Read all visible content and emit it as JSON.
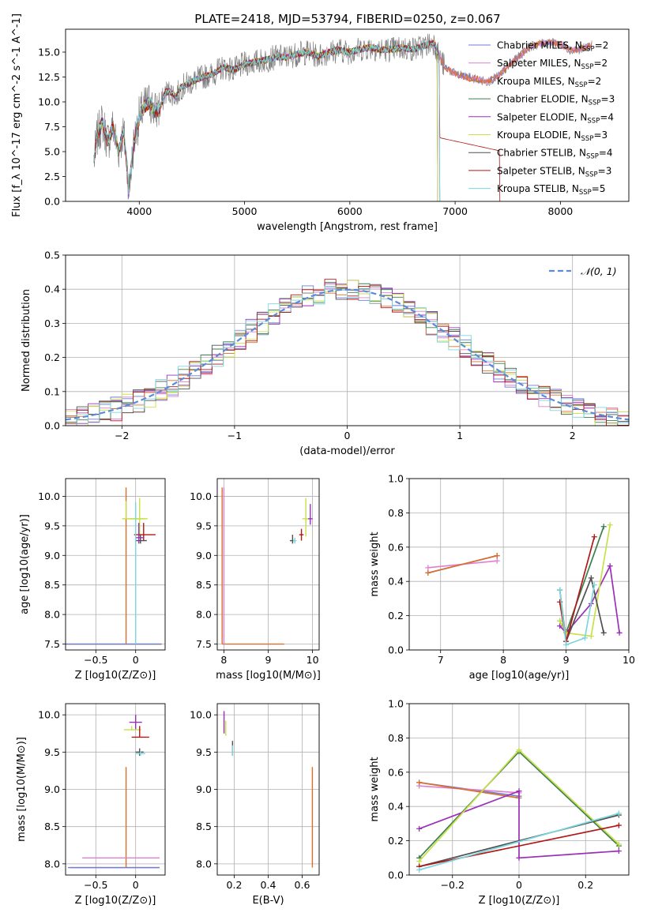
{
  "figure_title": "PLATE=2418, MJD=53794, FIBERID=0250, z=0.067",
  "colors": {
    "chabrier_miles": "#6a7fd8",
    "salpeter_miles": "#e17fcf",
    "kroupa_miles": "#d9702a",
    "chabrier_elodie": "#3c7f4f",
    "salpeter_elodie": "#9b30b8",
    "kroupa_elodie": "#c8e04a",
    "chabrier_stelib": "#505050",
    "salpeter_stelib": "#b01818",
    "kroupa_stelib": "#7cd6dc",
    "gauss": "#5b8bd9",
    "data_spectrum": "#808080"
  },
  "legend": [
    {
      "label": "Chabrier MILES, N",
      "sub": "SSP",
      "suffix": "=2",
      "color_key": "chabrier_miles"
    },
    {
      "label": "Salpeter MILES, N",
      "sub": "SSP",
      "suffix": "=2",
      "color_key": "salpeter_miles"
    },
    {
      "label": "Kroupa MILES, N",
      "sub": "SSP",
      "suffix": "=2",
      "color_key": "kroupa_miles"
    },
    {
      "label": "Chabrier ELODIE, N",
      "sub": "SSP",
      "suffix": "=3",
      "color_key": "chabrier_elodie"
    },
    {
      "label": "Salpeter ELODIE, N",
      "sub": "SSP",
      "suffix": "=4",
      "color_key": "salpeter_elodie"
    },
    {
      "label": "Kroupa ELODIE, N",
      "sub": "SSP",
      "suffix": "=3",
      "color_key": "kroupa_elodie"
    },
    {
      "label": "Chabrier STELIB, N",
      "sub": "SSP",
      "suffix": "=4",
      "color_key": "chabrier_stelib"
    },
    {
      "label": "Salpeter STELIB, N",
      "sub": "SSP",
      "suffix": "=3",
      "color_key": "salpeter_stelib"
    },
    {
      "label": "Kroupa STELIB, N",
      "sub": "SSP",
      "suffix": "=5",
      "color_key": "kroupa_stelib"
    }
  ],
  "chart_data": [
    {
      "id": "spectrum",
      "type": "line",
      "xlabel": "wavelength [Angstrom, rest frame]",
      "ylabel": "Flux [f_λ 10^-17 erg cm^-2 s^-1 A^-1]",
      "xlim": [
        3300,
        8650
      ],
      "ylim": [
        0,
        17.3
      ],
      "xticks": [
        4000,
        5000,
        6000,
        7000,
        8000
      ],
      "yticks": [
        0.0,
        2.5,
        5.0,
        7.5,
        10.0,
        12.5,
        15.0
      ],
      "series": [
        {
          "name": "data",
          "x": [
            3570,
            3600,
            3650,
            3700,
            3750,
            3800,
            3850,
            3880,
            3900,
            3950,
            4000,
            4050,
            4100,
            4150,
            4200,
            4250,
            4300,
            4350,
            4400,
            4500,
            4600,
            4700,
            4800,
            4900,
            5000,
            5100,
            5200,
            5300,
            5400,
            5500,
            5600,
            5700,
            5800,
            5900,
            6000,
            6100,
            6200,
            6300,
            6400,
            6500,
            6600,
            6700,
            6800,
            6850,
            6900,
            7000,
            7100,
            7200,
            7300,
            7400,
            7500,
            7600,
            7700,
            7800,
            7900,
            8000,
            8100,
            8200,
            8300
          ],
          "y": [
            4.0,
            6.5,
            8.0,
            6.0,
            7.5,
            5.0,
            7.0,
            4.0,
            1.0,
            6.0,
            8.5,
            9.5,
            10.0,
            9.0,
            9.5,
            11.0,
            11.0,
            10.5,
            11.5,
            12.0,
            12.5,
            12.8,
            13.5,
            13.2,
            13.8,
            14.0,
            14.2,
            14.5,
            14.5,
            14.8,
            15.0,
            14.6,
            15.0,
            15.2,
            15.0,
            15.3,
            15.5,
            15.2,
            15.3,
            15.4,
            15.3,
            15.6,
            16.0,
            14.5,
            13.5,
            12.8,
            12.5,
            12.3,
            12.0,
            12.5,
            13.5,
            14.5,
            15.5,
            15.8,
            16.0,
            15.8,
            15.2,
            15.3,
            15.7
          ]
        }
      ]
    },
    {
      "id": "residuals",
      "type": "line",
      "xlabel": "(data-model)/error",
      "ylabel": "Normed distribution",
      "xlim": [
        -2.5,
        2.5
      ],
      "ylim": [
        0,
        0.5
      ],
      "xticks": [
        -2,
        -1,
        0,
        1,
        2
      ],
      "yticks": [
        0.0,
        0.1,
        0.2,
        0.3,
        0.4,
        0.5
      ],
      "legend_label": "N(0,1)",
      "legend_position": "top-right",
      "hist_bins": 50,
      "series": [
        {
          "name": "N(0,1)",
          "x": [
            -2.5,
            -2.25,
            -2.0,
            -1.75,
            -1.5,
            -1.25,
            -1.0,
            -0.75,
            -0.5,
            -0.25,
            0.0,
            0.25,
            0.5,
            0.75,
            1.0,
            1.25,
            1.5,
            1.75,
            2.0,
            2.25,
            2.5
          ],
          "y": [
            0.018,
            0.032,
            0.054,
            0.086,
            0.13,
            0.183,
            0.242,
            0.301,
            0.352,
            0.387,
            0.399,
            0.387,
            0.352,
            0.301,
            0.242,
            0.183,
            0.13,
            0.086,
            0.054,
            0.032,
            0.018
          ]
        }
      ]
    },
    {
      "id": "age_vs_Z",
      "type": "scatter",
      "xlabel": "Z [log10(Z/Z⊙)]",
      "ylabel": "age  [log10(age/yr)]",
      "xlim": [
        -0.88,
        0.37
      ],
      "ylim": [
        7.4,
        10.3
      ],
      "xticks": [
        -0.5,
        0.0
      ],
      "yticks": [
        7.5,
        8.0,
        8.5,
        9.0,
        9.5,
        10.0
      ],
      "errorbars": [
        {
          "x": -0.12,
          "y": 7.5,
          "xerr": [
            0.75,
            0.45
          ],
          "yerr": [
            0.0,
            2.65
          ],
          "color_key": "kroupa_miles"
        },
        {
          "x": 0.02,
          "y": 7.5,
          "xerr": [
            0.9,
            0.3
          ],
          "yerr": [
            0,
            0
          ],
          "color_key": "chabrier_miles"
        },
        {
          "x": -0.12,
          "y": 9.62,
          "xerr": [
            0.05,
            0.22
          ],
          "yerr": [
            0.0,
            0.3
          ],
          "color_key": "kroupa_elodie"
        },
        {
          "x": 0.05,
          "y": 9.62,
          "xerr": [
            0.12,
            0.1
          ],
          "yerr": [
            0.3,
            0.35
          ],
          "color_key": "kroupa_elodie"
        },
        {
          "x": 0.1,
          "y": 9.35,
          "xerr": [
            0.12,
            0.15
          ],
          "yerr": [
            0.1,
            0.2
          ],
          "color_key": "salpeter_stelib"
        },
        {
          "x": 0.06,
          "y": 9.25,
          "xerr": [
            0.06,
            0.08
          ],
          "yerr": [
            0.05,
            0.1
          ],
          "color_key": "chabrier_stelib"
        },
        {
          "x": 0.04,
          "y": 9.3,
          "xerr": [
            0.04,
            0.06
          ],
          "yerr": [
            0.1,
            0.25
          ],
          "color_key": "salpeter_elodie"
        },
        {
          "x": 0.0,
          "y": 8.6,
          "xerr": [
            0.0,
            0.0
          ],
          "yerr": [
            1.1,
            1.3
          ],
          "color_key": "kroupa_stelib"
        }
      ]
    },
    {
      "id": "age_vs_mass",
      "type": "scatter",
      "xlabel": "mass [log10(M/M⊙)]",
      "ylabel": "",
      "xlim": [
        7.85,
        10.15
      ],
      "ylim": [
        7.4,
        10.3
      ],
      "xticks": [
        8,
        9,
        10
      ],
      "yticks": [
        7.5,
        8.0,
        8.5,
        9.0,
        9.5,
        10.0
      ],
      "errorbars": [
        {
          "x": 7.96,
          "y": 7.5,
          "xerr": [
            0.0,
            1.4
          ],
          "yerr": [
            0.0,
            2.65
          ],
          "color_key": "kroupa_miles"
        },
        {
          "x": 8.0,
          "y": 8.8,
          "xerr": [
            0,
            0
          ],
          "yerr": [
            1.3,
            1.35
          ],
          "color_key": "salpeter_miles"
        },
        {
          "x": 9.85,
          "y": 9.62,
          "xerr": [
            0.08,
            0.08
          ],
          "yerr": [
            0.3,
            0.35
          ],
          "color_key": "kroupa_elodie"
        },
        {
          "x": 9.95,
          "y": 9.62,
          "xerr": [
            0.05,
            0.05
          ],
          "yerr": [
            0.1,
            0.25
          ],
          "color_key": "salpeter_elodie"
        },
        {
          "x": 9.55,
          "y": 9.25,
          "xerr": [
            0.06,
            0.06
          ],
          "yerr": [
            0.05,
            0.1
          ],
          "color_key": "chabrier_stelib"
        },
        {
          "x": 9.75,
          "y": 9.35,
          "xerr": [
            0.05,
            0.05
          ],
          "yerr": [
            0.1,
            0.1
          ],
          "color_key": "salpeter_stelib"
        },
        {
          "x": 9.6,
          "y": 9.25,
          "xerr": [
            0.04,
            0.04
          ],
          "yerr": [
            0.05,
            0.05
          ],
          "color_key": "kroupa_stelib"
        }
      ]
    },
    {
      "id": "massweight_vs_age",
      "type": "line",
      "xlabel": "age  [log10(age/yr)]",
      "ylabel": "mass weight",
      "xlim": [
        6.5,
        10.0
      ],
      "ylim": [
        0,
        1.0
      ],
      "xticks": [
        7,
        8,
        9,
        10
      ],
      "yticks": [
        0.0,
        0.2,
        0.4,
        0.6,
        0.8,
        1.0
      ],
      "series": [
        {
          "name": "Chabrier MILES",
          "color_key": "chabrier_miles",
          "x": [
            6.8,
            7.9
          ],
          "y": [
            0.45,
            0.55
          ]
        },
        {
          "name": "Salpeter MILES",
          "color_key": "salpeter_miles",
          "x": [
            6.8,
            7.9
          ],
          "y": [
            0.48,
            0.52
          ]
        },
        {
          "name": "Kroupa MILES",
          "color_key": "kroupa_miles",
          "x": [
            6.8,
            7.9
          ],
          "y": [
            0.45,
            0.55
          ]
        },
        {
          "name": "Chabrier ELODIE",
          "color_key": "chabrier_elodie",
          "x": [
            8.9,
            9.0,
            9.6
          ],
          "y": [
            0.17,
            0.1,
            0.72
          ]
        },
        {
          "name": "Salpeter ELODIE",
          "color_key": "salpeter_elodie",
          "x": [
            8.9,
            9.0,
            9.4,
            9.7,
            9.85
          ],
          "y": [
            0.14,
            0.1,
            0.27,
            0.49,
            0.1
          ]
        },
        {
          "name": "Kroupa ELODIE",
          "color_key": "kroupa_elodie",
          "x": [
            8.9,
            9.0,
            9.4,
            9.7
          ],
          "y": [
            0.17,
            0.1,
            0.08,
            0.73
          ]
        },
        {
          "name": "Chabrier STELIB",
          "color_key": "chabrier_stelib",
          "x": [
            8.9,
            9.0,
            9.4,
            9.6
          ],
          "y": [
            0.35,
            0.05,
            0.42,
            0.1
          ]
        },
        {
          "name": "Salpeter STELIB",
          "color_key": "salpeter_stelib",
          "x": [
            8.9,
            9.0,
            9.45
          ],
          "y": [
            0.28,
            0.05,
            0.66
          ]
        },
        {
          "name": "Kroupa STELIB",
          "color_key": "kroupa_stelib",
          "x": [
            8.9,
            9.0,
            9.3,
            9.45
          ],
          "y": [
            0.35,
            0.03,
            0.07,
            0.38
          ]
        }
      ]
    },
    {
      "id": "mass_vs_Z",
      "type": "scatter",
      "xlabel": "Z [log10(Z/Z⊙)]",
      "ylabel": "mass [log10(M/M⊙)]",
      "xlim": [
        -0.88,
        0.37
      ],
      "ylim": [
        7.85,
        10.15
      ],
      "xticks": [
        -0.5,
        0.0
      ],
      "yticks": [
        8.0,
        8.5,
        9.0,
        9.5,
        10.0
      ],
      "errorbars": [
        {
          "x": -0.12,
          "y": 7.95,
          "xerr": [
            0.7,
            0.42
          ],
          "yerr": [
            0.0,
            1.35
          ],
          "color_key": "kroupa_miles"
        },
        {
          "x": -0.12,
          "y": 8.08,
          "xerr": [
            0.55,
            0.42
          ],
          "yerr": [
            0,
            0
          ],
          "color_key": "salpeter_miles"
        },
        {
          "x": 0.0,
          "y": 7.95,
          "xerr": [
            0.85,
            0.3
          ],
          "yerr": [
            0,
            0
          ],
          "color_key": "chabrier_miles"
        },
        {
          "x": 0.0,
          "y": 9.9,
          "xerr": [
            0.08,
            0.08
          ],
          "yerr": [
            0.1,
            0.1
          ],
          "color_key": "salpeter_elodie"
        },
        {
          "x": -0.05,
          "y": 9.8,
          "xerr": [
            0.1,
            0.12
          ],
          "yerr": [
            0.0,
            0.05
          ],
          "color_key": "kroupa_elodie"
        },
        {
          "x": 0.05,
          "y": 9.7,
          "xerr": [
            0.1,
            0.12
          ],
          "yerr": [
            0.0,
            0.15
          ],
          "color_key": "salpeter_stelib"
        },
        {
          "x": 0.05,
          "y": 9.5,
          "xerr": [
            0.05,
            0.05
          ],
          "yerr": [
            0.05,
            0.05
          ],
          "color_key": "chabrier_stelib"
        },
        {
          "x": 0.06,
          "y": 9.48,
          "xerr": [
            0.06,
            0.06
          ],
          "yerr": [
            0.03,
            0.03
          ],
          "color_key": "kroupa_stelib"
        }
      ]
    },
    {
      "id": "mass_vs_ebv",
      "type": "scatter",
      "xlabel": "E(B-V)",
      "ylabel": "",
      "xlim": [
        0.1,
        0.7
      ],
      "ylim": [
        7.85,
        10.15
      ],
      "xticks": [
        0.2,
        0.4,
        0.6
      ],
      "yticks": [
        8.0,
        8.5,
        9.0,
        9.5,
        10.0
      ],
      "errorbars": [
        {
          "x": 0.66,
          "y": 7.95,
          "xerr": [
            0,
            0
          ],
          "yerr": [
            0.0,
            1.35
          ],
          "color_key": "kroupa_miles"
        },
        {
          "x": 0.14,
          "y": 9.9,
          "xerr": [
            0,
            0
          ],
          "yerr": [
            0.15,
            0.15
          ],
          "color_key": "salpeter_elodie"
        },
        {
          "x": 0.15,
          "y": 9.82,
          "xerr": [
            0,
            0
          ],
          "yerr": [
            0.1,
            0.1
          ],
          "color_key": "kroupa_elodie"
        },
        {
          "x": 0.19,
          "y": 9.55,
          "xerr": [
            0,
            0
          ],
          "yerr": [
            0.1,
            0.1
          ],
          "color_key": "chabrier_stelib"
        },
        {
          "x": 0.19,
          "y": 9.52,
          "xerr": [
            0,
            0
          ],
          "yerr": [
            0.07,
            0.07
          ],
          "color_key": "kroupa_stelib"
        }
      ]
    },
    {
      "id": "massweight_vs_Z",
      "type": "line",
      "xlabel": "Z [log10(Z/Z⊙)]",
      "ylabel": "mass weight",
      "xlim": [
        -0.33,
        0.33
      ],
      "ylim": [
        0,
        1.0
      ],
      "xticks": [
        -0.2,
        0.0,
        0.2
      ],
      "yticks": [
        0.0,
        0.2,
        0.4,
        0.6,
        0.8,
        1.0
      ],
      "series": [
        {
          "name": "Chabrier MILES",
          "color_key": "chabrier_miles",
          "x": [
            -0.3,
            0.0
          ],
          "y": [
            0.54,
            0.46
          ]
        },
        {
          "name": "Salpeter MILES",
          "color_key": "salpeter_miles",
          "x": [
            -0.3,
            0.0
          ],
          "y": [
            0.52,
            0.48
          ]
        },
        {
          "name": "Kroupa MILES",
          "color_key": "kroupa_miles",
          "x": [
            -0.3,
            0.0
          ],
          "y": [
            0.54,
            0.45
          ]
        },
        {
          "name": "Chabrier ELODIE",
          "color_key": "chabrier_elodie",
          "x": [
            -0.3,
            0.0,
            0.3
          ],
          "y": [
            0.1,
            0.72,
            0.17
          ]
        },
        {
          "name": "Salpeter ELODIE",
          "color_key": "salpeter_elodie",
          "x": [
            -0.3,
            0.0,
            0.0,
            0.3
          ],
          "y": [
            0.27,
            0.49,
            0.1,
            0.14
          ]
        },
        {
          "name": "Kroupa ELODIE",
          "color_key": "kroupa_elodie",
          "x": [
            -0.3,
            0.0,
            0.3
          ],
          "y": [
            0.08,
            0.73,
            0.18
          ]
        },
        {
          "name": "Chabrier STELIB",
          "color_key": "chabrier_stelib",
          "x": [
            -0.3,
            0.3
          ],
          "y": [
            0.05,
            0.35
          ]
        },
        {
          "name": "Salpeter STELIB",
          "color_key": "salpeter_stelib",
          "x": [
            -0.3,
            0.3
          ],
          "y": [
            0.05,
            0.29
          ]
        },
        {
          "name": "Kroupa STELIB",
          "color_key": "kroupa_stelib",
          "x": [
            -0.3,
            0.3
          ],
          "y": [
            0.03,
            0.36
          ]
        }
      ]
    }
  ]
}
